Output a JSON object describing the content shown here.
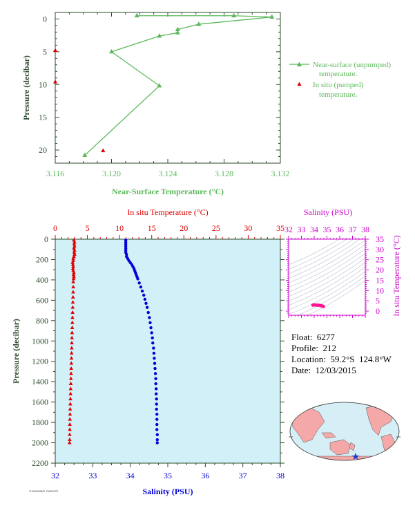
{
  "colors": {
    "green": "#5cb85c",
    "red": "#e00000",
    "blue": "#0000d8",
    "magenta": "#cc00cc",
    "axis_dark": "#2b4a2b",
    "profile_bg": "#d2f0f8",
    "ts_bg": "#ffffff",
    "land": "#f4a8a8",
    "ocean": "#d6eef6"
  },
  "info": {
    "float": "Float:  6277",
    "profile": "Profile:  212",
    "location": "Location:  59.2°S  124.8°W",
    "date": "Date:  12/03/2015"
  },
  "footnote": "7HGIDM9M7 70990270",
  "chart_data": [
    {
      "type": "line",
      "id": "near-surface",
      "xlabel": "Near-Surface Temperature (°C)",
      "ylabel": "Pressure (decibar)",
      "xlim": [
        3.116,
        3.132
      ],
      "ylim": [
        22,
        -1
      ],
      "xticks": [
        "3.116",
        "3.120",
        "3.124",
        "3.128",
        "3.132"
      ],
      "yticks": [
        "0",
        "5",
        "10",
        "15",
        "20"
      ],
      "grid": false,
      "legend_position": "right",
      "series": [
        {
          "name": "Near-surface (unpumped) temperature.",
          "marker": "triangle",
          "line": true,
          "points": [
            [
              3.1218,
              -0.5
            ],
            [
              3.1287,
              -0.5
            ],
            [
              3.1314,
              -0.3
            ],
            [
              3.1262,
              0.8
            ],
            [
              3.1247,
              1.6
            ],
            [
              3.1247,
              2.1
            ],
            [
              3.1234,
              2.6
            ],
            [
              3.12,
              5.0
            ],
            [
              3.1234,
              10.2
            ],
            [
              3.1181,
              20.8
            ]
          ]
        },
        {
          "name": "In situ (pumped) temperature.",
          "marker": "triangle",
          "line": false,
          "points": [
            [
              3.116,
              4.8
            ],
            [
              3.116,
              9.6
            ],
            [
              3.1194,
              20.1
            ]
          ]
        }
      ]
    },
    {
      "type": "scatter",
      "id": "profile",
      "title_top": "In situ Temperature (°C)",
      "xlabel": "Salinity (PSU)",
      "ylabel": "Pressure (decibar)",
      "temperature_axis": [
        0,
        35
      ],
      "temperature_ticks": [
        "0",
        "5",
        "10",
        "15",
        "20",
        "25",
        "30",
        "35"
      ],
      "salinity_axis": [
        32,
        38
      ],
      "salinity_ticks": [
        "32",
        "33",
        "34",
        "35",
        "36",
        "37",
        "38"
      ],
      "ylim": [
        0,
        2200
      ],
      "yticks": [
        "0",
        "200",
        "400",
        "600",
        "800",
        "1000",
        "1200",
        "1400",
        "1600",
        "1800",
        "2000",
        "2200"
      ],
      "grid": false,
      "series": [
        {
          "name": "In situ Temperature (°C)",
          "marker": "triangle",
          "points": [
            [
              2.9,
              10
            ],
            [
              3.0,
              30
            ],
            [
              2.95,
              50
            ],
            [
              3.0,
              70
            ],
            [
              2.9,
              90
            ],
            [
              3.0,
              110
            ],
            [
              2.95,
              130
            ],
            [
              3.0,
              150
            ],
            [
              2.9,
              170
            ],
            [
              2.8,
              190
            ],
            [
              2.8,
              210
            ],
            [
              2.7,
              230
            ],
            [
              2.75,
              250
            ],
            [
              2.8,
              270
            ],
            [
              2.75,
              290
            ],
            [
              2.8,
              310
            ],
            [
              2.9,
              330
            ],
            [
              2.85,
              350
            ],
            [
              2.9,
              370
            ],
            [
              2.85,
              390
            ],
            [
              2.8,
              420
            ],
            [
              2.8,
              470
            ],
            [
              2.78,
              520
            ],
            [
              2.76,
              570
            ],
            [
              2.74,
              620
            ],
            [
              2.72,
              670
            ],
            [
              2.7,
              720
            ],
            [
              2.68,
              770
            ],
            [
              2.66,
              820
            ],
            [
              2.64,
              870
            ],
            [
              2.62,
              920
            ],
            [
              2.6,
              970
            ],
            [
              2.58,
              1020
            ],
            [
              2.56,
              1070
            ],
            [
              2.54,
              1120
            ],
            [
              2.52,
              1170
            ],
            [
              2.5,
              1220
            ],
            [
              2.48,
              1270
            ],
            [
              2.46,
              1320
            ],
            [
              2.44,
              1370
            ],
            [
              2.42,
              1420
            ],
            [
              2.4,
              1470
            ],
            [
              2.38,
              1520
            ],
            [
              2.36,
              1570
            ],
            [
              2.34,
              1620
            ],
            [
              2.32,
              1670
            ],
            [
              2.3,
              1720
            ],
            [
              2.28,
              1770
            ],
            [
              2.27,
              1820
            ],
            [
              2.26,
              1870
            ],
            [
              2.25,
              1920
            ],
            [
              2.24,
              1970
            ],
            [
              2.23,
              2000
            ]
          ]
        },
        {
          "name": "Salinity (PSU)",
          "marker": "circle",
          "points": [
            [
              33.88,
              10
            ],
            [
              33.88,
              30
            ],
            [
              33.88,
              50
            ],
            [
              33.88,
              70
            ],
            [
              33.88,
              90
            ],
            [
              33.88,
              110
            ],
            [
              33.88,
              130
            ],
            [
              33.9,
              150
            ],
            [
              33.9,
              170
            ],
            [
              33.93,
              190
            ],
            [
              33.96,
              210
            ],
            [
              34.0,
              230
            ],
            [
              34.04,
              250
            ],
            [
              34.07,
              270
            ],
            [
              34.1,
              290
            ],
            [
              34.12,
              310
            ],
            [
              34.14,
              330
            ],
            [
              34.16,
              350
            ],
            [
              34.18,
              370
            ],
            [
              34.2,
              390
            ],
            [
              34.24,
              430
            ],
            [
              34.28,
              470
            ],
            [
              34.32,
              510
            ],
            [
              34.36,
              550
            ],
            [
              34.39,
              590
            ],
            [
              34.42,
              630
            ],
            [
              34.45,
              670
            ],
            [
              34.48,
              720
            ],
            [
              34.51,
              770
            ],
            [
              34.53,
              820
            ],
            [
              34.55,
              870
            ],
            [
              34.57,
              920
            ],
            [
              34.59,
              970
            ],
            [
              34.6,
              1020
            ],
            [
              34.62,
              1070
            ],
            [
              34.63,
              1120
            ],
            [
              34.64,
              1170
            ],
            [
              34.65,
              1220
            ],
            [
              34.66,
              1270
            ],
            [
              34.67,
              1320
            ],
            [
              34.68,
              1370
            ],
            [
              34.68,
              1420
            ],
            [
              34.69,
              1470
            ],
            [
              34.69,
              1520
            ],
            [
              34.7,
              1570
            ],
            [
              34.7,
              1620
            ],
            [
              34.7,
              1670
            ],
            [
              34.71,
              1720
            ],
            [
              34.71,
              1770
            ],
            [
              34.71,
              1820
            ],
            [
              34.71,
              1870
            ],
            [
              34.72,
              1920
            ],
            [
              34.72,
              1970
            ],
            [
              34.72,
              2000
            ]
          ]
        }
      ]
    },
    {
      "type": "scatter",
      "id": "ts-diagram",
      "xlabel": "Salinity (PSU)",
      "ylabel": "In situ Temperature (°C)",
      "xlim": [
        32,
        38
      ],
      "ylim": [
        -2,
        35
      ],
      "xticks": [
        "32",
        "33",
        "34",
        "35",
        "36",
        "37",
        "38"
      ],
      "yticks": [
        "0",
        "5",
        "10",
        "15",
        "20",
        "25",
        "30",
        "35"
      ],
      "grid": false,
      "points": [
        [
          33.9,
          2.9
        ],
        [
          33.95,
          3.0
        ],
        [
          34.05,
          3.0
        ],
        [
          34.15,
          2.9
        ],
        [
          34.25,
          2.9
        ],
        [
          34.35,
          2.85
        ],
        [
          34.45,
          2.75
        ],
        [
          34.55,
          2.6
        ],
        [
          34.62,
          2.5
        ],
        [
          34.68,
          2.35
        ],
        [
          34.72,
          2.23
        ]
      ]
    }
  ]
}
